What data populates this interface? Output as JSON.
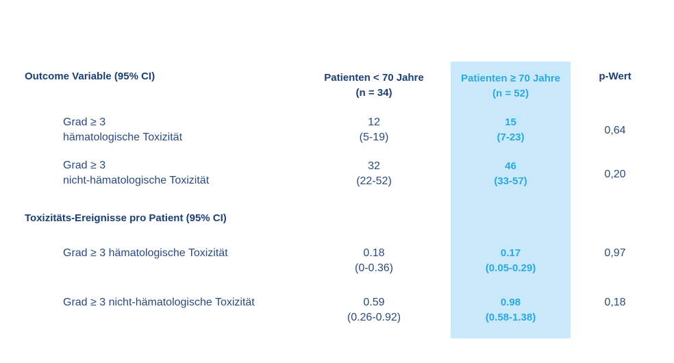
{
  "section1_title": "Outcome Variable (95% CI)",
  "section2_title": "Toxizitäts-Ereignisse pro Patient (95% CI)",
  "columns": {
    "young": {
      "label": "Patienten < 70 Jahre",
      "n": "(n = 34)"
    },
    "old": {
      "label": "Patienten ≥ 70 Jahre",
      "n": "(n = 52)"
    },
    "p": {
      "label": "p-Wert"
    }
  },
  "rows": [
    {
      "label_line1": "Grad ≥ 3",
      "label_line2": "hämatologische Toxizität",
      "young": "12",
      "young_ci": "(5-19)",
      "old": "15",
      "old_ci": "(7-23)",
      "p": "0,64"
    },
    {
      "label_line1": "Grad ≥ 3",
      "label_line2": "nicht-hämatologische Toxizität",
      "young": "32",
      "young_ci": "(22-52)",
      "old": "46",
      "old_ci": "(33-57)",
      "p": "0,20"
    },
    {
      "label_line1": "Grad ≥ 3 hämatologische Toxizität",
      "young": "0.18",
      "young_ci": "(0-0.36)",
      "old": "0.17",
      "old_ci": "(0.05-0.29)",
      "p": "0,97"
    },
    {
      "label_line1": "Grad ≥ 3 nicht-hämatologische Toxizität",
      "young": "0.59",
      "young_ci": "(0.26-0.92)",
      "old": "0.98",
      "old_ci": "(0.58-1.38)",
      "p": "0,18"
    }
  ],
  "colors": {
    "highlight_bg": "#c9e9fb",
    "highlight_text": "#2aa8e0",
    "header_text": "#1b3f73",
    "body_text": "#2a4a7c"
  }
}
